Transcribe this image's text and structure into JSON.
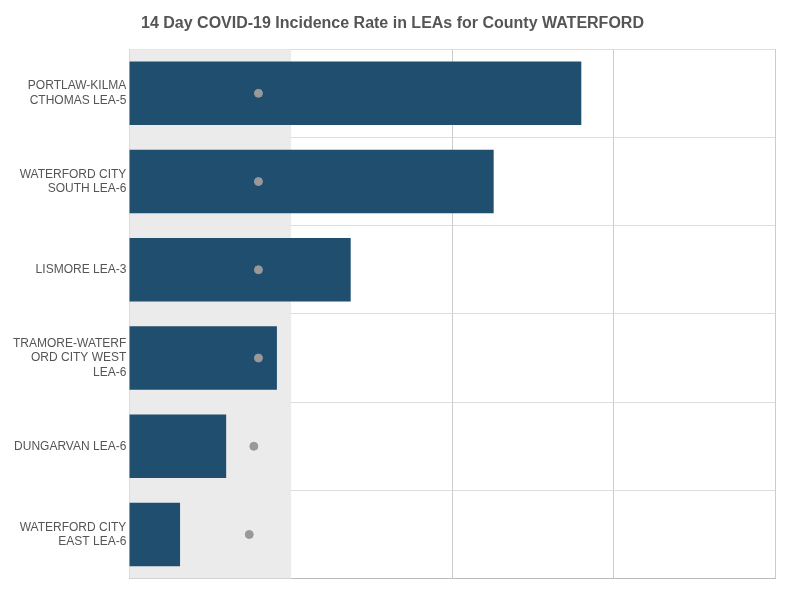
{
  "chart_data": {
    "type": "bar",
    "orientation": "horizontal",
    "title": "14 Day COVID-19 Incidence Rate in LEAs for County WATERFORD",
    "categories": [
      "WATERFORD CITY\nEAST LEA-6",
      "DUNGARVAN LEA-6",
      "TRAMORE-WATERF\nORD CITY WEST\nLEA-6",
      "LISMORE LEA-3",
      "WATERFORD CITY\nSOUTH LEA-6",
      "PORTLAW-KILMA\nCTHOMAS LEA-5"
    ],
    "series": [
      {
        "values": [
          175,
          175,
          175,
          175,
          175,
          175
        ],
        "color": "#ebebeb"
      },
      {
        "values": [
          55,
          105,
          160,
          240,
          395,
          490
        ],
        "color": "#1f4e6e"
      },
      {
        "type": "scatter",
        "marker": "o",
        "values": [
          130,
          135,
          140,
          140,
          140,
          140
        ],
        "color": "#999999"
      }
    ],
    "xlim": [
      0,
      700
    ],
    "xticks": [
      175,
      350,
      525,
      700
    ],
    "grid": true,
    "tick_labels": "y"
  }
}
